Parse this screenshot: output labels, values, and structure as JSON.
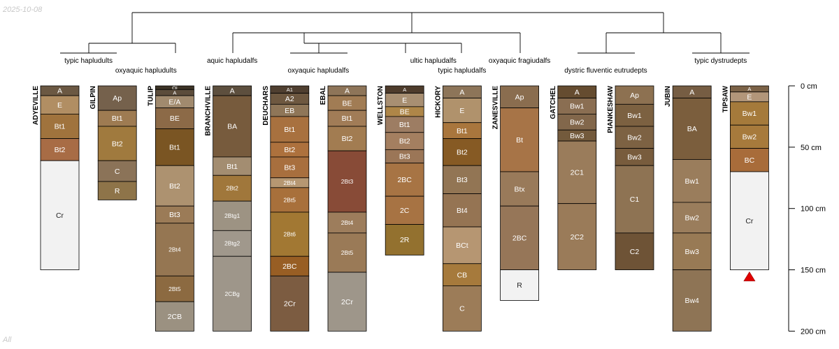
{
  "date_stamp": "2025-10-08",
  "corner_note": "All",
  "colors": {
    "line": "#000000",
    "bedrock": "#f2f2f2",
    "marker": "#e00000"
  },
  "chart_data": {
    "type": "soil-profile-sketch",
    "depth_axis": {
      "unit": "cm",
      "ylim": [
        0,
        200
      ],
      "ticks": [
        0,
        50,
        100,
        150,
        200
      ],
      "tick_labels": [
        "0 cm",
        "50 cm",
        "100 cm",
        "150 cm",
        "200 cm"
      ]
    },
    "dendrogram": {
      "taxa": [
        {
          "label": "typic hapludults",
          "row": 0,
          "pair": [
            0,
            1
          ]
        },
        {
          "label": "oxyaquic hapludults",
          "row": 1,
          "pair": [
            1,
            2
          ]
        },
        {
          "label": "aquic hapludalfs",
          "row": 0,
          "pair": [
            3,
            3
          ]
        },
        {
          "label": "oxyaquic hapludalfs",
          "row": 1,
          "pair": [
            4,
            5
          ]
        },
        {
          "label": "ultic hapludalfs",
          "row": 0,
          "pair": [
            6,
            7
          ]
        },
        {
          "label": "typic hapludalfs",
          "row": 1,
          "pair": [
            7,
            7
          ]
        },
        {
          "label": "oxyaquic fragiudalfs",
          "row": 0,
          "pair": [
            8,
            8
          ]
        },
        {
          "label": "dystric fluventic eutrudepts",
          "row": 1,
          "pair": [
            9,
            10
          ]
        },
        {
          "label": "typic dystrudepts",
          "row": 0,
          "pair": [
            11,
            12
          ]
        }
      ]
    },
    "profiles": [
      {
        "name": "ADYEVILLE",
        "horizons": [
          {
            "name": "A",
            "top": 0,
            "bottom": 8,
            "color": "#6b5843"
          },
          {
            "name": "E",
            "top": 8,
            "bottom": 23,
            "color": "#b18e63"
          },
          {
            "name": "Bt1",
            "top": 23,
            "bottom": 43,
            "color": "#a0733d"
          },
          {
            "name": "Bt2",
            "top": 43,
            "bottom": 61,
            "color": "#a86c45"
          },
          {
            "name": "Cr",
            "top": 61,
            "bottom": 150,
            "color": "#f2f2f2"
          }
        ]
      },
      {
        "name": "GILPIN",
        "horizons": [
          {
            "name": "Ap",
            "top": 0,
            "bottom": 20,
            "color": "#75614c"
          },
          {
            "name": "Bt1",
            "top": 20,
            "bottom": 33,
            "color": "#9e7b52"
          },
          {
            "name": "Bt2",
            "top": 33,
            "bottom": 61,
            "color": "#a07a3e"
          },
          {
            "name": "C",
            "top": 61,
            "bottom": 78,
            "color": "#8b7358"
          },
          {
            "name": "R",
            "top": 78,
            "bottom": 93,
            "color": "#8e7449"
          }
        ]
      },
      {
        "name": "TULIP",
        "horizons": [
          {
            "name": "Oi",
            "top": 0,
            "bottom": 3,
            "color": "#3c3326"
          },
          {
            "name": "A",
            "top": 3,
            "bottom": 8,
            "color": "#5b4c3b"
          },
          {
            "name": "E/A",
            "top": 8,
            "bottom": 18,
            "color": "#a18a6e"
          },
          {
            "name": "BE",
            "top": 18,
            "bottom": 35,
            "color": "#8c6a47"
          },
          {
            "name": "Bt1",
            "top": 35,
            "bottom": 65,
            "color": "#7a5523"
          },
          {
            "name": "Bt2",
            "top": 65,
            "bottom": 98,
            "color": "#ad9270"
          },
          {
            "name": "Bt3",
            "top": 98,
            "bottom": 112,
            "color": "#9b7b57"
          },
          {
            "name": "2Bt4",
            "top": 112,
            "bottom": 155,
            "color": "#957652"
          },
          {
            "name": "2Bt5",
            "top": 155,
            "bottom": 176,
            "color": "#8c6a41"
          },
          {
            "name": "2CB",
            "top": 176,
            "bottom": 200,
            "color": "#9b9181"
          }
        ]
      },
      {
        "name": "BRANCHVILLE",
        "horizons": [
          {
            "name": "A",
            "top": 0,
            "bottom": 8,
            "color": "#5d4f3e"
          },
          {
            "name": "BA",
            "top": 8,
            "bottom": 58,
            "color": "#775b3d"
          },
          {
            "name": "Bt1",
            "top": 58,
            "bottom": 73,
            "color": "#a38d71"
          },
          {
            "name": "2Bt2",
            "top": 73,
            "bottom": 94,
            "color": "#a0773b"
          },
          {
            "name": "2Btg1",
            "top": 94,
            "bottom": 118,
            "color": "#9d9383"
          },
          {
            "name": "2Btg2",
            "top": 118,
            "bottom": 139,
            "color": "#a0988c"
          },
          {
            "name": "2CBg",
            "top": 139,
            "bottom": 200,
            "color": "#9e968a"
          }
        ]
      },
      {
        "name": "DEUCHARS",
        "horizons": [
          {
            "name": "A1",
            "top": 0,
            "bottom": 6,
            "color": "#4f3f30"
          },
          {
            "name": "A2",
            "top": 6,
            "bottom": 15,
            "color": "#6e5840"
          },
          {
            "name": "EB",
            "top": 15,
            "bottom": 25,
            "color": "#8f7658"
          },
          {
            "name": "Bt1",
            "top": 25,
            "bottom": 46,
            "color": "#a8713f"
          },
          {
            "name": "Bt2",
            "top": 46,
            "bottom": 58,
            "color": "#ad713d"
          },
          {
            "name": "Bt3",
            "top": 58,
            "bottom": 75,
            "color": "#a86f3e"
          },
          {
            "name": "2Bt4",
            "top": 75,
            "bottom": 83,
            "color": "#b69772"
          },
          {
            "name": "2Bt5",
            "top": 83,
            "bottom": 103,
            "color": "#a8703b"
          },
          {
            "name": "2Bt6",
            "top": 103,
            "bottom": 139,
            "color": "#a27833"
          },
          {
            "name": "2BC",
            "top": 139,
            "bottom": 155,
            "color": "#985e24"
          },
          {
            "name": "2Cr",
            "top": 155,
            "bottom": 200,
            "color": "#7c5c41"
          }
        ]
      },
      {
        "name": "EBAL",
        "horizons": [
          {
            "name": "A",
            "top": 0,
            "bottom": 8,
            "color": "#8e7559"
          },
          {
            "name": "BE",
            "top": 8,
            "bottom": 20,
            "color": "#a17c54"
          },
          {
            "name": "Bt1",
            "top": 20,
            "bottom": 33,
            "color": "#a17c57"
          },
          {
            "name": "Bt2",
            "top": 33,
            "bottom": 53,
            "color": "#a27c51"
          },
          {
            "name": "2Bt3",
            "top": 53,
            "bottom": 103,
            "color": "#884b37"
          },
          {
            "name": "2Bt4",
            "top": 103,
            "bottom": 120,
            "color": "#9d7d5c"
          },
          {
            "name": "2Bt5",
            "top": 120,
            "bottom": 152,
            "color": "#9a7a57"
          },
          {
            "name": "2Cr",
            "top": 152,
            "bottom": 200,
            "color": "#9e968a"
          }
        ]
      },
      {
        "name": "WELLSTON",
        "horizons": [
          {
            "name": "A",
            "top": 0,
            "bottom": 6,
            "color": "#4e3c2c"
          },
          {
            "name": "E",
            "top": 6,
            "bottom": 17,
            "color": "#a88f72"
          },
          {
            "name": "BE",
            "top": 17,
            "bottom": 25,
            "color": "#ae8648"
          },
          {
            "name": "Bt1",
            "top": 25,
            "bottom": 38,
            "color": "#9d7d63"
          },
          {
            "name": "Bt2",
            "top": 38,
            "bottom": 52,
            "color": "#a47f60"
          },
          {
            "name": "Bt3",
            "top": 52,
            "bottom": 63,
            "color": "#9b7657"
          },
          {
            "name": "2BC",
            "top": 63,
            "bottom": 90,
            "color": "#a77444"
          },
          {
            "name": "2C",
            "top": 90,
            "bottom": 113,
            "color": "#a77343"
          },
          {
            "name": "2R",
            "top": 113,
            "bottom": 138,
            "color": "#93712f"
          }
        ]
      },
      {
        "name": "HICKORY",
        "horizons": [
          {
            "name": "A",
            "top": 0,
            "bottom": 10,
            "color": "#8d7559"
          },
          {
            "name": "E",
            "top": 10,
            "bottom": 30,
            "color": "#b0926c"
          },
          {
            "name": "Bt1",
            "top": 30,
            "bottom": 43,
            "color": "#a9763d"
          },
          {
            "name": "Bt2",
            "top": 43,
            "bottom": 65,
            "color": "#865a24"
          },
          {
            "name": "Bt3",
            "top": 65,
            "bottom": 88,
            "color": "#927554"
          },
          {
            "name": "Bt4",
            "top": 88,
            "bottom": 115,
            "color": "#957453"
          },
          {
            "name": "BCt",
            "top": 115,
            "bottom": 145,
            "color": "#b69672"
          },
          {
            "name": "CB",
            "top": 145,
            "bottom": 163,
            "color": "#a67a3c"
          },
          {
            "name": "C",
            "top": 163,
            "bottom": 200,
            "color": "#9c7c58"
          }
        ]
      },
      {
        "name": "ZANESVILLE",
        "horizons": [
          {
            "name": "Ap",
            "top": 0,
            "bottom": 18,
            "color": "#8a6d4f"
          },
          {
            "name": "Bt",
            "top": 18,
            "bottom": 70,
            "color": "#a77447"
          },
          {
            "name": "Btx",
            "top": 70,
            "bottom": 98,
            "color": "#997a5a"
          },
          {
            "name": "2BC",
            "top": 98,
            "bottom": 150,
            "color": "#967658"
          },
          {
            "name": "R",
            "top": 150,
            "bottom": 175,
            "color": "#f2f2f2"
          }
        ]
      },
      {
        "name": "GATCHEL",
        "horizons": [
          {
            "name": "A",
            "top": 0,
            "bottom": 10,
            "color": "#654c30"
          },
          {
            "name": "Bw1",
            "top": 10,
            "bottom": 23,
            "color": "#8a6e52"
          },
          {
            "name": "Bw2",
            "top": 23,
            "bottom": 36,
            "color": "#82674b"
          },
          {
            "name": "Bw3",
            "top": 36,
            "bottom": 45,
            "color": "#735a3c"
          },
          {
            "name": "2C1",
            "top": 45,
            "bottom": 96,
            "color": "#9a7c5b"
          },
          {
            "name": "2C2",
            "top": 96,
            "bottom": 150,
            "color": "#9a7b59"
          }
        ]
      },
      {
        "name": "PIANKESHAW",
        "horizons": [
          {
            "name": "Ap",
            "top": 0,
            "bottom": 15,
            "color": "#8d7151"
          },
          {
            "name": "Bw1",
            "top": 15,
            "bottom": 33,
            "color": "#7c6141"
          },
          {
            "name": "Bw2",
            "top": 33,
            "bottom": 51,
            "color": "#7d6243"
          },
          {
            "name": "Bw3",
            "top": 51,
            "bottom": 65,
            "color": "#785c3d"
          },
          {
            "name": "C1",
            "top": 65,
            "bottom": 120,
            "color": "#8e7353"
          },
          {
            "name": "C2",
            "top": 120,
            "bottom": 150,
            "color": "#6e5336"
          }
        ]
      },
      {
        "name": "JUBIN",
        "horizons": [
          {
            "name": "A",
            "top": 0,
            "bottom": 10,
            "color": "#765d43"
          },
          {
            "name": "BA",
            "top": 10,
            "bottom": 60,
            "color": "#7b5e3d"
          },
          {
            "name": "Bw1",
            "top": 60,
            "bottom": 95,
            "color": "#9a7d5c"
          },
          {
            "name": "Bw2",
            "top": 95,
            "bottom": 120,
            "color": "#9a7d5c"
          },
          {
            "name": "Bw3",
            "top": 120,
            "bottom": 150,
            "color": "#987a55"
          },
          {
            "name": "Bw4",
            "top": 150,
            "bottom": 200,
            "color": "#8e7455"
          }
        ]
      },
      {
        "name": "TIPSAW",
        "marker": "triangle",
        "horizons": [
          {
            "name": "A",
            "top": 0,
            "bottom": 5,
            "color": "#7b6247"
          },
          {
            "name": "E",
            "top": 5,
            "bottom": 13,
            "color": "#b2967a"
          },
          {
            "name": "Bw1",
            "top": 13,
            "bottom": 32,
            "color": "#a57a3b"
          },
          {
            "name": "Bw2",
            "top": 32,
            "bottom": 51,
            "color": "#a77a3c"
          },
          {
            "name": "BC",
            "top": 51,
            "bottom": 70,
            "color": "#a86c3a"
          },
          {
            "name": "Cr",
            "top": 70,
            "bottom": 150,
            "color": "#f2f2f2"
          }
        ]
      }
    ]
  }
}
